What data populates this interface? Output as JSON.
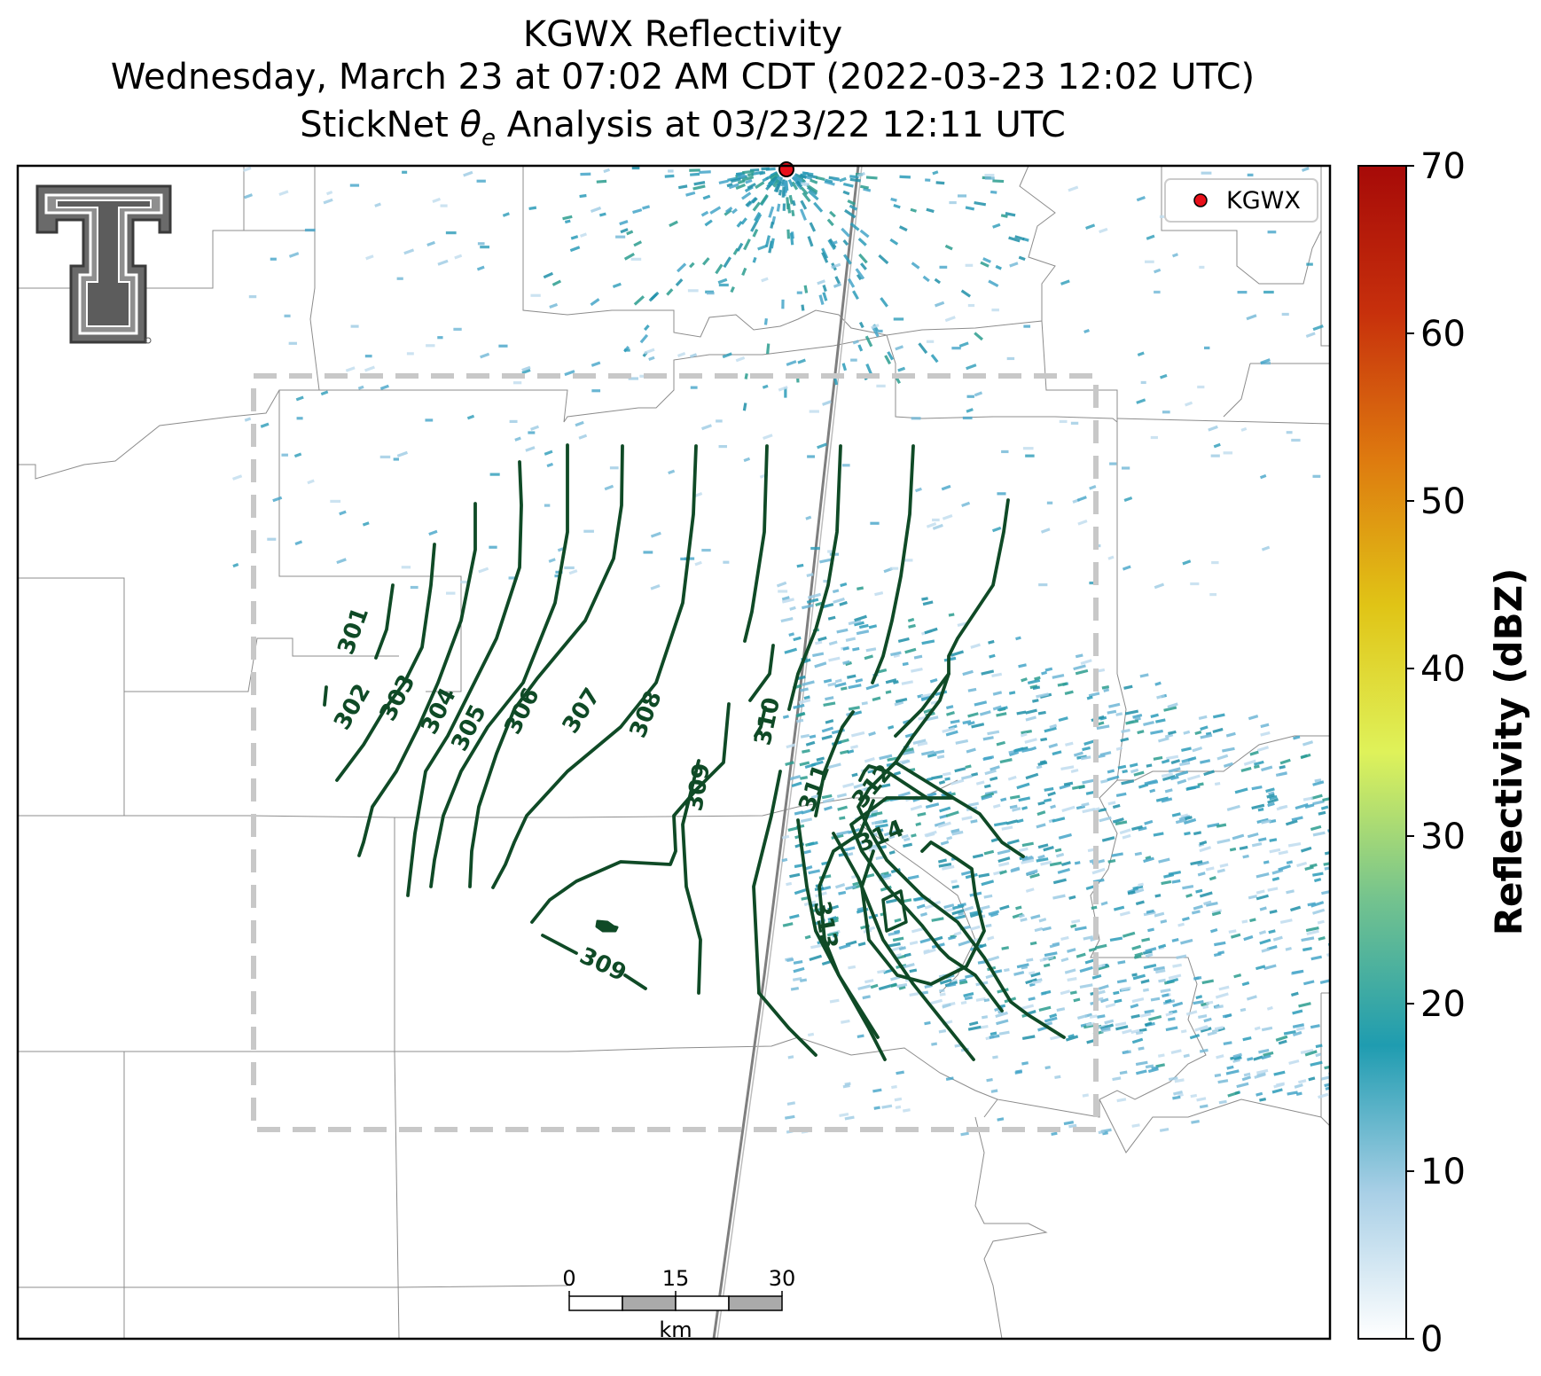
{
  "title": {
    "line1": "KGWX Reflectivity",
    "line2": "Wednesday, March 23 at 07:02 AM CDT (2022-03-23 12:02 UTC)",
    "line3_prefix": "StickNet ",
    "line3_symbol": "θ",
    "line3_subscript": "e",
    "line3_suffix": " Analysis at 03/23/22 12:11 UTC"
  },
  "legend": {
    "label": "KGWX",
    "marker_color": "#e8101a"
  },
  "colorbar": {
    "label": "Reflectivity (dBZ)",
    "ticks": [
      "0",
      "10",
      "20",
      "30",
      "40",
      "50",
      "60",
      "70"
    ],
    "range": [
      0,
      70
    ],
    "colors": [
      "#ffffff",
      "#a8cfe6",
      "#1f9cb0",
      "#74c38e",
      "#dff25a",
      "#e0c416",
      "#de7a0f",
      "#c7300c",
      "#a60a08"
    ]
  },
  "contours": {
    "color": "#0f4a26",
    "labels": [
      "301",
      "302",
      "303",
      "304",
      "305",
      "306",
      "307",
      "308",
      "309",
      "310",
      "311",
      "312",
      "313",
      "314",
      "309"
    ]
  },
  "scale_bar": {
    "ticks": [
      "0",
      "15",
      "30"
    ],
    "unit": "km"
  },
  "logo": {
    "text": "T"
  },
  "radar_echo_color": "#2a9bb8"
}
